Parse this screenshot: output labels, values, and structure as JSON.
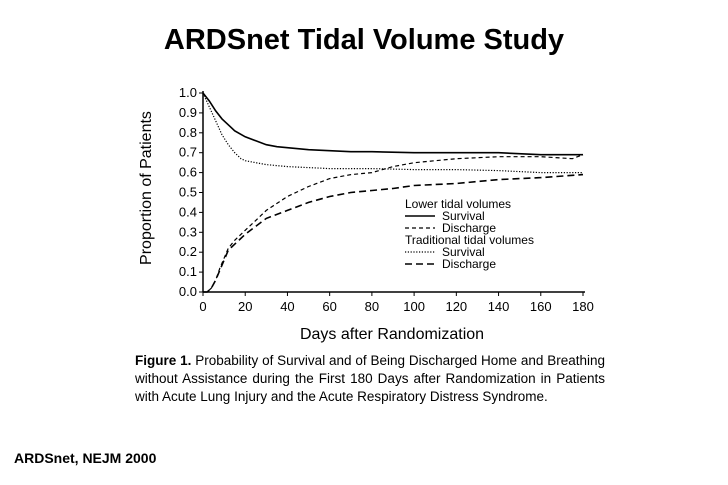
{
  "slide": {
    "title": "ARDSnet Tidal Volume Study",
    "citation": "ARDSnet, NEJM 2000"
  },
  "figure": {
    "caption_label": "Figure 1.",
    "caption_text": "Probability of Survival and of Being Discharged Home and Breathing without Assistance during the First 180 Days after Randomization in Patients with Acute Lung Injury and the Acute Respiratory Distress Syndrome."
  },
  "chart_data": {
    "type": "line",
    "title": "",
    "xlabel": "Days after Randomization",
    "ylabel": "Proportion of Patients",
    "xlim": [
      0,
      180
    ],
    "ylim": [
      0,
      1
    ],
    "xticks": [
      0,
      20,
      40,
      60,
      80,
      100,
      120,
      140,
      160,
      180
    ],
    "yticks": [
      0.0,
      0.1,
      0.2,
      0.3,
      0.4,
      0.5,
      0.6,
      0.7,
      0.8,
      0.9,
      1.0
    ],
    "ytick_labels": [
      "0.0",
      "0.1",
      "0.2",
      "0.3",
      "0.4",
      "0.5",
      "0.6",
      "0.7",
      "0.8",
      "0.9",
      "1.0"
    ],
    "grid": false,
    "legend": {
      "position": "right",
      "groups": [
        {
          "title": "Lower tidal volumes",
          "entries": [
            {
              "label": "Survival",
              "series_index": 0
            },
            {
              "label": "Discharge",
              "series_index": 1
            }
          ]
        },
        {
          "title": "Traditional tidal volumes",
          "entries": [
            {
              "label": "Survival",
              "series_index": 2
            },
            {
              "label": "Discharge",
              "series_index": 3
            }
          ]
        }
      ]
    },
    "series": [
      {
        "name": "Lower tidal volumes - Survival",
        "style": "solid",
        "color": "#000000",
        "x": [
          0,
          3,
          6,
          9,
          12,
          15,
          20,
          25,
          30,
          35,
          40,
          50,
          60,
          70,
          80,
          100,
          120,
          140,
          160,
          180
        ],
        "y": [
          1.0,
          0.96,
          0.91,
          0.87,
          0.84,
          0.81,
          0.78,
          0.76,
          0.74,
          0.73,
          0.725,
          0.715,
          0.71,
          0.705,
          0.705,
          0.7,
          0.7,
          0.7,
          0.69,
          0.69
        ]
      },
      {
        "name": "Lower tidal volumes - Discharge",
        "style": "dashed",
        "color": "#000000",
        "x": [
          0,
          2,
          4,
          6,
          8,
          10,
          12,
          15,
          20,
          25,
          30,
          40,
          50,
          60,
          70,
          80,
          90,
          100,
          110,
          120,
          140,
          160,
          175,
          180
        ],
        "y": [
          0.0,
          0.0,
          0.02,
          0.06,
          0.12,
          0.17,
          0.22,
          0.26,
          0.31,
          0.36,
          0.41,
          0.48,
          0.53,
          0.57,
          0.59,
          0.6,
          0.63,
          0.65,
          0.66,
          0.67,
          0.68,
          0.68,
          0.67,
          0.69
        ]
      },
      {
        "name": "Traditional tidal volumes - Survival",
        "style": "dotted",
        "color": "#000000",
        "x": [
          0,
          3,
          6,
          9,
          12,
          15,
          18,
          20,
          25,
          30,
          40,
          60,
          80,
          100,
          120,
          140,
          160,
          180
        ],
        "y": [
          1.0,
          0.93,
          0.86,
          0.79,
          0.74,
          0.7,
          0.67,
          0.66,
          0.65,
          0.64,
          0.63,
          0.62,
          0.62,
          0.615,
          0.615,
          0.61,
          0.6,
          0.6
        ]
      },
      {
        "name": "Traditional tidal volumes - Discharge",
        "style": "longdash",
        "color": "#000000",
        "x": [
          0,
          2,
          4,
          6,
          8,
          10,
          12,
          15,
          20,
          25,
          30,
          40,
          50,
          60,
          70,
          80,
          90,
          100,
          120,
          140,
          160,
          180
        ],
        "y": [
          0.0,
          0.0,
          0.02,
          0.06,
          0.11,
          0.16,
          0.21,
          0.24,
          0.29,
          0.33,
          0.37,
          0.41,
          0.45,
          0.48,
          0.5,
          0.51,
          0.52,
          0.535,
          0.545,
          0.565,
          0.575,
          0.59
        ]
      }
    ]
  }
}
